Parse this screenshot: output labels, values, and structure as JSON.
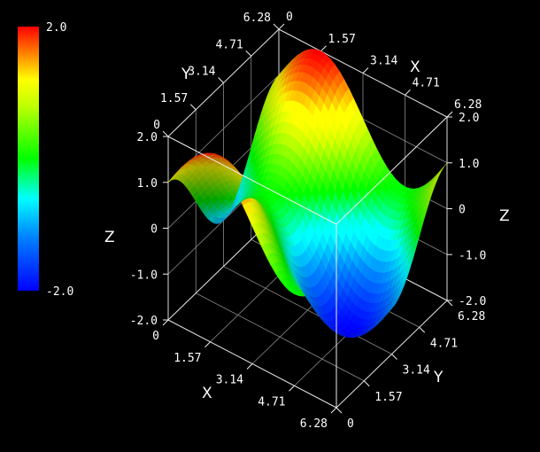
{
  "chart_data": {
    "type": "surface3d",
    "function": "z = sin(x) + cos(y)",
    "x_range": [
      0,
      6.28
    ],
    "y_range": [
      0,
      6.28
    ],
    "z_range": [
      -2.0,
      2.0
    ],
    "xlabel": "X",
    "ylabel": "Y",
    "zlabel": "Z",
    "x_ticks": [
      "0",
      "1.57",
      "3.14",
      "4.71",
      "6.28"
    ],
    "y_ticks": [
      "0",
      "1.57",
      "3.14",
      "4.71",
      "6.28"
    ],
    "z_ticks": [
      "-2.0",
      "-1.0",
      "0",
      "1.0",
      "2.0"
    ],
    "colorbar": {
      "max_label": "2.0",
      "min_label": "-2.0",
      "colormap": "rainbow",
      "colors": [
        "#0000ff",
        "#00ffff",
        "#00ff00",
        "#ffff00",
        "#ff0000"
      ]
    },
    "grid": true,
    "background": "#000000"
  }
}
